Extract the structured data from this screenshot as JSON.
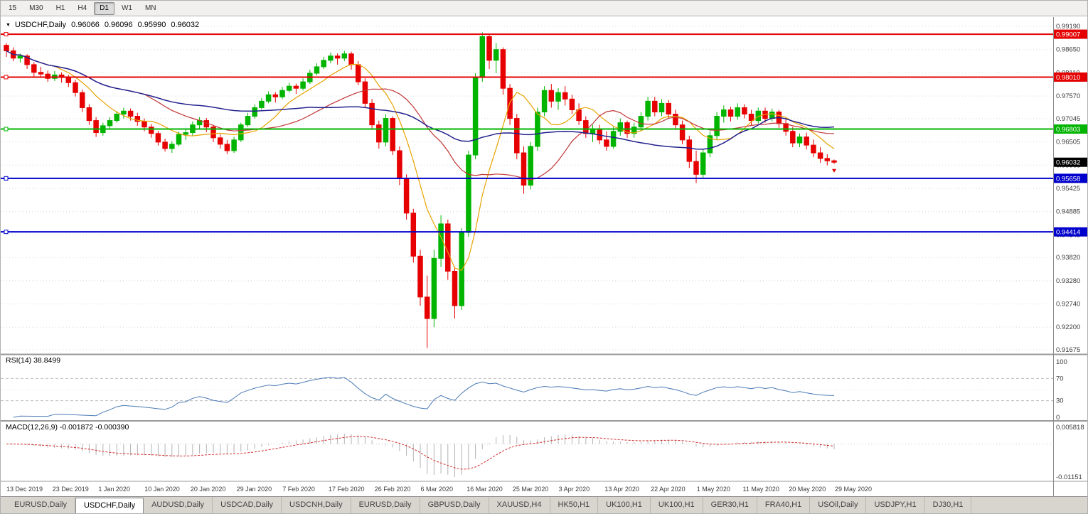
{
  "toolbar": {
    "timeframes": [
      "15",
      "M30",
      "H1",
      "H4",
      "D1",
      "W1",
      "MN"
    ],
    "active_timeframe": "D1"
  },
  "header": {
    "symbol_label": "USDCHF,Daily",
    "ohlc": {
      "open": "0.96066",
      "high": "0.96096",
      "low": "0.95990",
      "close": "0.96032"
    }
  },
  "chart_data": {
    "type": "candlestick",
    "symbol": "USDCHF",
    "timeframe": "Daily",
    "title": "USDCHF,Daily",
    "ylim": [
      0.91675,
      0.9919
    ],
    "y_tick_labels": [
      "0.99190",
      "0.98650",
      "0.98110",
      "0.97570",
      "0.97045",
      "0.96505",
      "0.95965",
      "0.95425",
      "0.94885",
      "0.94345",
      "0.93820",
      "0.93280",
      "0.92740",
      "0.92200",
      "0.91675"
    ],
    "x_tick_labels": [
      "13 Dec 2019",
      "23 Dec 2019",
      "1 Jan 2020",
      "10 Jan 2020",
      "20 Jan 2020",
      "29 Jan 2020",
      "7 Feb 2020",
      "17 Feb 2020",
      "26 Feb 2020",
      "6 Mar 2020",
      "16 Mar 2020",
      "25 Mar 2020",
      "3 Apr 2020",
      "13 Apr 2020",
      "22 Apr 2020",
      "1 May 2020",
      "11 May 2020",
      "20 May 2020",
      "29 May 2020"
    ],
    "candles": [
      [
        0.9875,
        0.988,
        0.9848,
        0.9862
      ],
      [
        0.9862,
        0.987,
        0.9838,
        0.9845
      ],
      [
        0.9845,
        0.9856,
        0.9835,
        0.985
      ],
      [
        0.985,
        0.9854,
        0.982,
        0.983
      ],
      [
        0.983,
        0.9836,
        0.9802,
        0.9812
      ],
      [
        0.9812,
        0.9825,
        0.98,
        0.9808
      ],
      [
        0.9808,
        0.9816,
        0.979,
        0.9798
      ],
      [
        0.9798,
        0.9815,
        0.9792,
        0.9806
      ],
      [
        0.9806,
        0.9812,
        0.9788,
        0.98
      ],
      [
        0.98,
        0.9806,
        0.9778,
        0.9788
      ],
      [
        0.9788,
        0.9795,
        0.9756,
        0.9765
      ],
      [
        0.9765,
        0.9772,
        0.972,
        0.973
      ],
      [
        0.973,
        0.9738,
        0.969,
        0.97
      ],
      [
        0.97,
        0.9708,
        0.9662,
        0.9672
      ],
      [
        0.9672,
        0.9695,
        0.9665,
        0.9688
      ],
      [
        0.9688,
        0.9708,
        0.968,
        0.97
      ],
      [
        0.97,
        0.9722,
        0.9695,
        0.9715
      ],
      [
        0.9715,
        0.973,
        0.9705,
        0.9722
      ],
      [
        0.9722,
        0.9728,
        0.97,
        0.971
      ],
      [
        0.971,
        0.9718,
        0.9688,
        0.9698
      ],
      [
        0.9698,
        0.9705,
        0.9675,
        0.9685
      ],
      [
        0.9685,
        0.9692,
        0.966,
        0.967
      ],
      [
        0.967,
        0.9676,
        0.9642,
        0.965
      ],
      [
        0.965,
        0.9658,
        0.9628,
        0.9635
      ],
      [
        0.9635,
        0.9652,
        0.9625,
        0.9645
      ],
      [
        0.9645,
        0.9675,
        0.964,
        0.9668
      ],
      [
        0.9668,
        0.968,
        0.9655,
        0.9672
      ],
      [
        0.9672,
        0.9698,
        0.9665,
        0.969
      ],
      [
        0.969,
        0.9708,
        0.9682,
        0.97
      ],
      [
        0.97,
        0.9706,
        0.9673,
        0.9685
      ],
      [
        0.9685,
        0.969,
        0.965,
        0.966
      ],
      [
        0.966,
        0.9668,
        0.9635,
        0.9645
      ],
      [
        0.9645,
        0.9655,
        0.9622,
        0.963
      ],
      [
        0.963,
        0.9662,
        0.9625,
        0.9655
      ],
      [
        0.9655,
        0.9695,
        0.965,
        0.969
      ],
      [
        0.969,
        0.9718,
        0.9685,
        0.971
      ],
      [
        0.971,
        0.9738,
        0.9705,
        0.973
      ],
      [
        0.973,
        0.9752,
        0.9725,
        0.9745
      ],
      [
        0.9745,
        0.9768,
        0.974,
        0.976
      ],
      [
        0.976,
        0.9766,
        0.9742,
        0.9755
      ],
      [
        0.9755,
        0.9778,
        0.975,
        0.977
      ],
      [
        0.977,
        0.9788,
        0.9765,
        0.978
      ],
      [
        0.978,
        0.9786,
        0.9762,
        0.9775
      ],
      [
        0.9775,
        0.9798,
        0.977,
        0.979
      ],
      [
        0.979,
        0.9818,
        0.9785,
        0.981
      ],
      [
        0.981,
        0.9833,
        0.9805,
        0.9825
      ],
      [
        0.9825,
        0.9848,
        0.982,
        0.984
      ],
      [
        0.984,
        0.9858,
        0.9833,
        0.985
      ],
      [
        0.985,
        0.9856,
        0.983,
        0.9845
      ],
      [
        0.9845,
        0.9862,
        0.9838,
        0.9855
      ],
      [
        0.9855,
        0.986,
        0.9818,
        0.983
      ],
      [
        0.983,
        0.9838,
        0.9782,
        0.979
      ],
      [
        0.979,
        0.9798,
        0.973,
        0.974
      ],
      [
        0.974,
        0.975,
        0.968,
        0.969
      ],
      [
        0.969,
        0.97,
        0.9635,
        0.965
      ],
      [
        0.965,
        0.9715,
        0.964,
        0.9705
      ],
      [
        0.9705,
        0.971,
        0.962,
        0.963
      ],
      [
        0.963,
        0.964,
        0.955,
        0.9565
      ],
      [
        0.9565,
        0.9575,
        0.947,
        0.9485
      ],
      [
        0.9485,
        0.9495,
        0.937,
        0.9385
      ],
      [
        0.9385,
        0.94,
        0.927,
        0.929
      ],
      [
        0.929,
        0.934,
        0.9172,
        0.924
      ],
      [
        0.924,
        0.94,
        0.922,
        0.938
      ],
      [
        0.938,
        0.948,
        0.936,
        0.946
      ],
      [
        0.946,
        0.947,
        0.933,
        0.935
      ],
      [
        0.935,
        0.936,
        0.924,
        0.927
      ],
      [
        0.927,
        0.945,
        0.926,
        0.944
      ],
      [
        0.944,
        0.963,
        0.943,
        0.962
      ],
      [
        0.962,
        0.981,
        0.961,
        0.98
      ],
      [
        0.98,
        0.9905,
        0.979,
        0.9895
      ],
      [
        0.9895,
        0.9901,
        0.982,
        0.984
      ],
      [
        0.984,
        0.988,
        0.981,
        0.9865
      ],
      [
        0.9865,
        0.987,
        0.976,
        0.9775
      ],
      [
        0.9775,
        0.9785,
        0.969,
        0.9705
      ],
      [
        0.9705,
        0.9715,
        0.961,
        0.9625
      ],
      [
        0.9625,
        0.964,
        0.953,
        0.955
      ],
      [
        0.955,
        0.965,
        0.954,
        0.964
      ],
      [
        0.964,
        0.973,
        0.963,
        0.972
      ],
      [
        0.972,
        0.978,
        0.971,
        0.977
      ],
      [
        0.977,
        0.9785,
        0.973,
        0.9745
      ],
      [
        0.9745,
        0.9775,
        0.9725,
        0.9765
      ],
      [
        0.9765,
        0.978,
        0.9735,
        0.975
      ],
      [
        0.975,
        0.976,
        0.9715,
        0.9725
      ],
      [
        0.9725,
        0.974,
        0.969,
        0.97
      ],
      [
        0.97,
        0.971,
        0.966,
        0.967
      ],
      [
        0.967,
        0.969,
        0.965,
        0.968
      ],
      [
        0.968,
        0.969,
        0.9645,
        0.9655
      ],
      [
        0.9655,
        0.9675,
        0.963,
        0.964
      ],
      [
        0.964,
        0.9685,
        0.9635,
        0.9675
      ],
      [
        0.9675,
        0.9705,
        0.9665,
        0.9695
      ],
      [
        0.9695,
        0.97,
        0.966,
        0.967
      ],
      [
        0.967,
        0.9695,
        0.966,
        0.9685
      ],
      [
        0.9685,
        0.972,
        0.9675,
        0.971
      ],
      [
        0.971,
        0.9755,
        0.97,
        0.9745
      ],
      [
        0.9745,
        0.9755,
        0.971,
        0.972
      ],
      [
        0.972,
        0.975,
        0.971,
        0.974
      ],
      [
        0.974,
        0.9748,
        0.9705,
        0.9715
      ],
      [
        0.9715,
        0.9725,
        0.968,
        0.969
      ],
      [
        0.969,
        0.97,
        0.9645,
        0.9655
      ],
      [
        0.9655,
        0.9665,
        0.959,
        0.9605
      ],
      [
        0.9605,
        0.963,
        0.9555,
        0.9575
      ],
      [
        0.9575,
        0.9635,
        0.9565,
        0.9625
      ],
      [
        0.9625,
        0.9675,
        0.9615,
        0.9665
      ],
      [
        0.9665,
        0.972,
        0.9655,
        0.971
      ],
      [
        0.971,
        0.9735,
        0.9695,
        0.9725
      ],
      [
        0.9725,
        0.9732,
        0.9698,
        0.971
      ],
      [
        0.971,
        0.974,
        0.9702,
        0.973
      ],
      [
        0.973,
        0.9738,
        0.9705,
        0.9715
      ],
      [
        0.9715,
        0.9725,
        0.9688,
        0.97
      ],
      [
        0.97,
        0.973,
        0.9693,
        0.9722
      ],
      [
        0.9722,
        0.973,
        0.9695,
        0.9705
      ],
      [
        0.9705,
        0.9728,
        0.9698,
        0.972
      ],
      [
        0.972,
        0.9725,
        0.9683,
        0.9693
      ],
      [
        0.9693,
        0.9703,
        0.9665,
        0.9675
      ],
      [
        0.9675,
        0.9685,
        0.9638,
        0.9648
      ],
      [
        0.9648,
        0.967,
        0.9638,
        0.9662
      ],
      [
        0.9662,
        0.9672,
        0.9633,
        0.9643
      ],
      [
        0.9643,
        0.9656,
        0.9615,
        0.9625
      ],
      [
        0.9625,
        0.9638,
        0.9602,
        0.9612
      ],
      [
        0.9612,
        0.9622,
        0.9596,
        0.96066
      ],
      [
        0.96066,
        0.96096,
        0.9599,
        0.96032
      ]
    ],
    "overlays": [
      {
        "name": "sma-fast",
        "period": 8,
        "color": "#e8a200"
      },
      {
        "name": "sma-mid",
        "period": 21,
        "color": "#c23535"
      },
      {
        "name": "sma-slow",
        "period": 45,
        "color": "#22228e"
      }
    ],
    "hlines": [
      {
        "label": "0.99007",
        "value": 0.99007,
        "color": "#e40000"
      },
      {
        "label": "0.98010",
        "value": 0.9801,
        "color": "#e40000"
      },
      {
        "label": "0.96803",
        "value": 0.96803,
        "color": "#00b400"
      },
      {
        "label": "0.95658",
        "value": 0.95658,
        "color": "#0000cc"
      },
      {
        "label": "0.94414",
        "value": 0.94414,
        "color": "#0000cc"
      }
    ],
    "current_price": {
      "label": "0.96032",
      "value": 0.96032,
      "color": "#000000"
    },
    "last_candle_marker": {
      "color": "#e40000"
    },
    "indicators": {
      "rsi": {
        "label": "RSI(14) 38.8499",
        "period": 14,
        "scale_labels": [
          "100",
          "70",
          "30",
          "0"
        ],
        "levels": [
          70,
          30
        ],
        "color": "#4a7ab5"
      },
      "macd": {
        "label": "MACD(12,26,9) -0.001872 -0.000390",
        "fast": 12,
        "slow": 26,
        "signal": 9,
        "scale_top_label": "0.005818",
        "scale_bottom_label": "-0.01151",
        "histogram_color": "#b2b2b2",
        "signal_color": "#d42a2a"
      }
    },
    "colors": {
      "bull": "#00b400",
      "bear": "#e60000",
      "background": "#ffffff",
      "grid": "#dadada"
    }
  },
  "tabs": {
    "active_index": 1,
    "items": [
      "EURUSD,Daily",
      "USDCHF,Daily",
      "AUDUSD,Daily",
      "USDCAD,Daily",
      "USDCNH,Daily",
      "EURUSD,Daily",
      "GBPUSD,Daily",
      "XAUUSD,H4",
      "HK50,H1",
      "UK100,H1",
      "UK100,H1",
      "GER30,H1",
      "FRA40,H1",
      "USOil,Daily",
      "USDJPY,H1",
      "DJ30,H1"
    ]
  }
}
